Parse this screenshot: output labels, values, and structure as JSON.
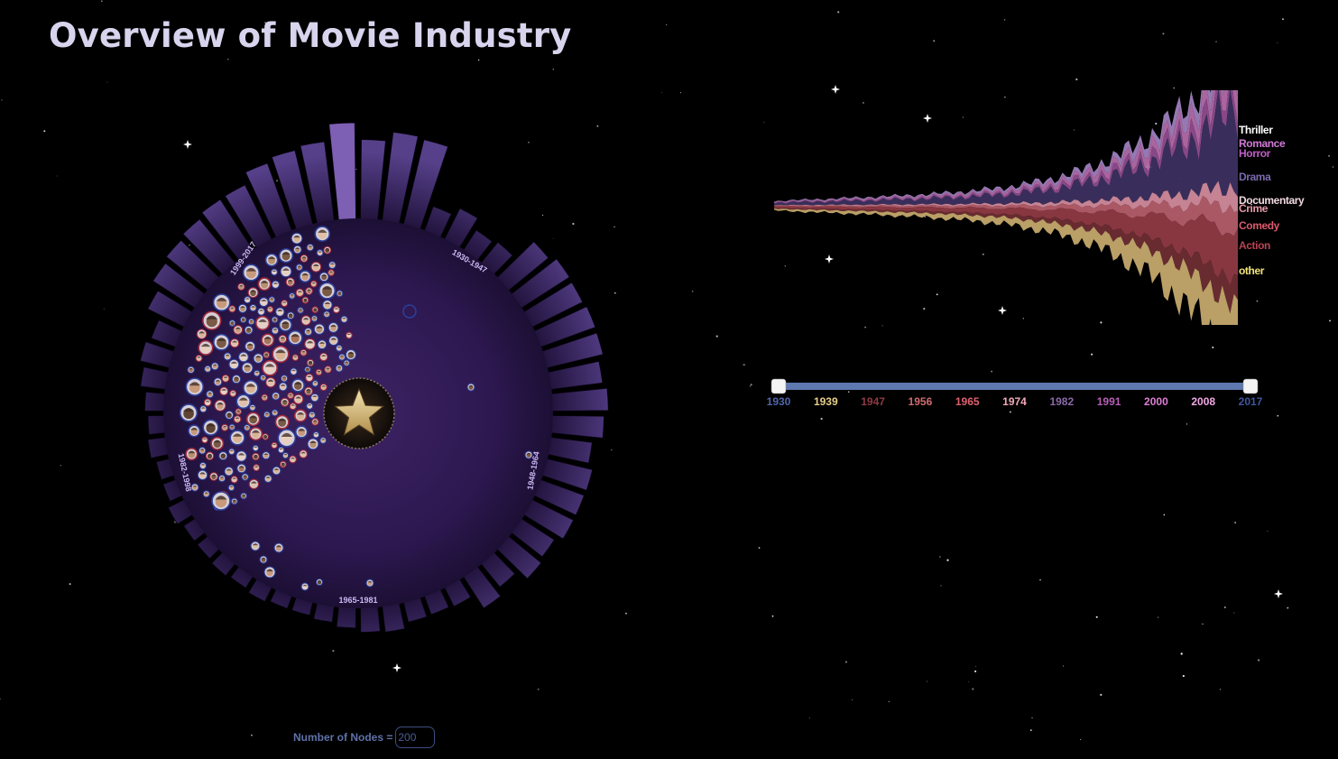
{
  "page": {
    "title": "Overview of Movie Industry"
  },
  "radial_chart": {
    "period_labels": [
      "1930-1947",
      "1948-1964",
      "1965-1981",
      "1982-1998",
      "1999-2017"
    ],
    "center_icon": "star-icon",
    "colors": {
      "disc": "#3b2160",
      "bars": "#4b3478",
      "highlight_bar": "#7d5fb3",
      "node_stroke_blue": "#2c3f9a",
      "node_stroke_red": "#a02a3a",
      "period_label": "#c9b8f2"
    }
  },
  "streamgraph": {
    "genres": [
      "Thriller",
      "Romance",
      "Horror",
      "Drama",
      "Documentary",
      "Crime",
      "Comedy",
      "Action",
      "other"
    ],
    "colors": {
      "Thriller": "#9c7fbd",
      "Romance": "#b36aa8",
      "Horror": "#8f4c8f",
      "Drama": "#3c3060",
      "Documentary": "#d08a9c",
      "Crime": "#b45d6a",
      "Comedy": "#8f3a44",
      "Action": "#6e2d33",
      "other": "#c4a86c"
    },
    "label_colors": {
      "Thriller": "#ffffff",
      "Romance": "#d27ad8",
      "Horror": "#c05ec8",
      "Drama": "#7a6aae",
      "Documentary": "#f0d8e0",
      "Crime": "#e79aa8",
      "Comedy": "#d95a6c",
      "Action": "#b84452",
      "other": "#f3e47a"
    }
  },
  "timeline": {
    "ticks": [
      "1930",
      "1939",
      "1947",
      "1956",
      "1965",
      "1974",
      "1982",
      "1991",
      "2000",
      "2008",
      "2017"
    ],
    "tick_colors": [
      "#4f66a8",
      "#e8d08a",
      "#8f3a44",
      "#d06a70",
      "#e0606e",
      "#f2aab8",
      "#8a6aa8",
      "#b75fb7",
      "#dd7fd5",
      "#f0a8e4",
      "#3e56a0"
    ],
    "range": [
      "1930",
      "2017"
    ],
    "track_color": "#5e78b0"
  },
  "controls": {
    "nodes_label": "Number of Nodes =",
    "nodes_value": "200"
  }
}
